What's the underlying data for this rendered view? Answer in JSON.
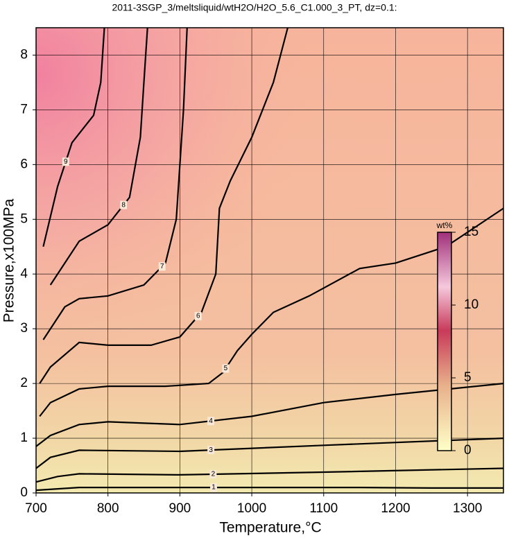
{
  "chart_data": {
    "type": "contour",
    "title": "2011-3SGP_3/meltsliquid/wtH2O/H2O_5.6_C1.000_3_PT, dz=0.1:",
    "x_label": "Temperature,°C",
    "y_label": "Pressure,x100MPa",
    "xlim": [
      700,
      1350
    ],
    "ylim": [
      0,
      8.5
    ],
    "xticks": [
      700,
      800,
      900,
      1000,
      1100,
      1200,
      1300
    ],
    "yticks": [
      0,
      1,
      2,
      3,
      4,
      5,
      6,
      7,
      8
    ],
    "grid": true,
    "colorbar": {
      "label": "wt%",
      "lim": [
        0,
        15
      ],
      "ticks": [
        0,
        5,
        10,
        15
      ]
    },
    "contours": [
      {
        "level": 1,
        "x": [
          700,
          760,
          850,
          950,
          1050,
          1150,
          1250,
          1350
        ],
        "y": [
          0.05,
          0.1,
          0.1,
          0.1,
          0.1,
          0.1,
          0.09,
          0.09
        ]
      },
      {
        "level": 2,
        "x": [
          700,
          730,
          760,
          900,
          1100,
          1350
        ],
        "y": [
          0.2,
          0.3,
          0.35,
          0.33,
          0.38,
          0.45
        ]
      },
      {
        "level": 3,
        "x": [
          700,
          720,
          760,
          900,
          1100,
          1350
        ],
        "y": [
          0.45,
          0.65,
          0.78,
          0.76,
          0.87,
          1.0
        ]
      },
      {
        "level": 4,
        "x": [
          700,
          720,
          760,
          800,
          900,
          1000,
          1100,
          1200,
          1350
        ],
        "y": [
          0.85,
          1.05,
          1.25,
          1.3,
          1.25,
          1.4,
          1.65,
          1.8,
          2.0
        ]
      },
      {
        "level": 5,
        "x": [
          705,
          720,
          760,
          800,
          880,
          940,
          960,
          980,
          1000,
          1030,
          1080,
          1150,
          1200,
          1270,
          1350
        ],
        "y": [
          1.4,
          1.65,
          1.9,
          1.95,
          1.95,
          2.0,
          2.2,
          2.6,
          2.9,
          3.3,
          3.6,
          4.1,
          4.2,
          4.5,
          5.2
        ]
      },
      {
        "level": 6,
        "x": [
          705,
          720,
          760,
          800,
          860,
          900,
          930,
          950,
          955,
          970,
          1000,
          1030,
          1050
        ],
        "y": [
          2.0,
          2.3,
          2.75,
          2.7,
          2.7,
          2.85,
          3.3,
          4.0,
          5.2,
          5.7,
          6.5,
          7.5,
          8.5
        ]
      },
      {
        "level": 7,
        "x": [
          710,
          740,
          760,
          800,
          850,
          880,
          895,
          900,
          905,
          910
        ],
        "y": [
          2.8,
          3.4,
          3.55,
          3.6,
          3.8,
          4.2,
          5.0,
          6.0,
          7.0,
          8.5
        ]
      },
      {
        "level": 8,
        "x": [
          720,
          740,
          760,
          800,
          830,
          845,
          850,
          855
        ],
        "y": [
          3.8,
          4.2,
          4.6,
          4.9,
          5.4,
          6.5,
          7.5,
          8.5
        ]
      },
      {
        "level": 9,
        "x": [
          710,
          730,
          750,
          780,
          790,
          795
        ],
        "y": [
          4.5,
          5.6,
          6.4,
          6.9,
          7.5,
          8.5
        ]
      }
    ]
  }
}
